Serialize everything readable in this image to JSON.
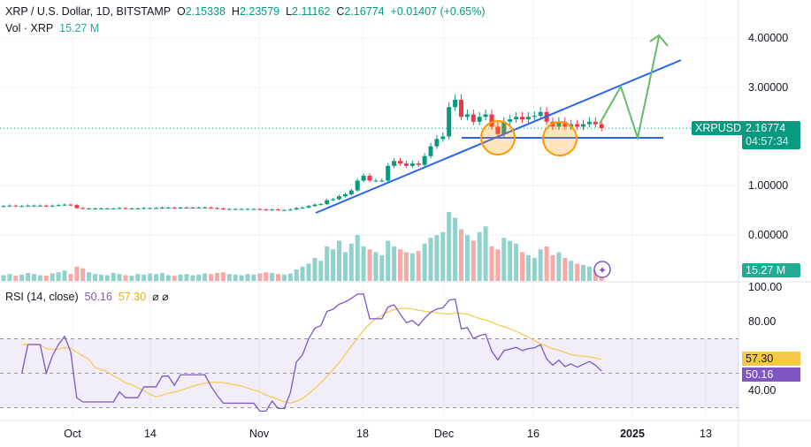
{
  "header": {
    "symbol": "XRP / U.S. Dollar, 1D, BITSTAMP",
    "o_label": "O",
    "open": "2.15338",
    "h_label": "H",
    "high": "2.23579",
    "l_label": "L",
    "low": "2.11162",
    "c_label": "C",
    "close": "2.16774",
    "change": "+0.01407 (+0.65%)",
    "vol_label": "Vol · XRP",
    "vol": "15.27 M"
  },
  "price_tag": {
    "symbol": "XRPUSD",
    "price": "2.16774",
    "countdown": "04:57:34"
  },
  "vol_tag": "15.27 M",
  "price_axis": [
    "4.00000",
    "3.00000",
    "1.00000",
    "0.00000"
  ],
  "rsi": {
    "label": "RSI (14, close)",
    "value": "50.16",
    "ma": "57.30",
    "icons": "⌀ ⌀",
    "axis": [
      "100.00",
      "80.00",
      "40.00"
    ]
  },
  "x_axis": [
    "Oct",
    "14",
    "Nov",
    "18",
    "Dec",
    "16",
    "2025",
    "13"
  ],
  "colors": {
    "up": "#089981",
    "down": "#f23645",
    "rsi": "#7e57c2",
    "rsi_ma": "#f7c948",
    "trend": "#2962ff",
    "circle": "#ff9800",
    "arrow": "#4caf50"
  },
  "chart_data": {
    "type": "candlestick",
    "start": "Sep 19",
    "closes": [
      0.58,
      0.59,
      0.58,
      0.58,
      0.59,
      0.59,
      0.59,
      0.58,
      0.59,
      0.6,
      0.61,
      0.6,
      0.54,
      0.53,
      0.53,
      0.53,
      0.53,
      0.53,
      0.53,
      0.54,
      0.53,
      0.53,
      0.53,
      0.54,
      0.54,
      0.54,
      0.55,
      0.55,
      0.54,
      0.55,
      0.55,
      0.55,
      0.55,
      0.55,
      0.54,
      0.53,
      0.52,
      0.52,
      0.52,
      0.52,
      0.52,
      0.52,
      0.51,
      0.5,
      0.51,
      0.5,
      0.5,
      0.51,
      0.54,
      0.55,
      0.58,
      0.61,
      0.62,
      0.7,
      0.72,
      0.78,
      0.82,
      0.9,
      1.1,
      1.2,
      1.1,
      1.1,
      1.1,
      1.4,
      1.5,
      1.45,
      1.4,
      1.45,
      1.42,
      1.6,
      1.8,
      1.95,
      2.0,
      2.6,
      2.75,
      2.4,
      2.45,
      2.3,
      2.4,
      2.45,
      2.2,
      2.05,
      2.3,
      2.35,
      2.4,
      2.35,
      2.4,
      2.42,
      2.5,
      2.3,
      2.2,
      2.3,
      2.2,
      2.25,
      2.2,
      2.25,
      2.3,
      2.25,
      2.17
    ],
    "volumes": [
      10,
      12,
      9,
      11,
      14,
      12,
      10,
      9,
      13,
      15,
      18,
      12,
      25,
      22,
      15,
      12,
      11,
      10,
      14,
      12,
      10,
      9,
      12,
      11,
      13,
      12,
      14,
      10,
      9,
      11,
      12,
      10,
      11,
      13,
      12,
      14,
      15,
      12,
      11,
      10,
      12,
      11,
      13,
      15,
      14,
      12,
      11,
      13,
      20,
      25,
      30,
      40,
      35,
      60,
      55,
      70,
      50,
      65,
      80,
      60,
      55,
      50,
      45,
      70,
      60,
      55,
      50,
      48,
      52,
      65,
      75,
      80,
      85,
      120,
      110,
      90,
      80,
      70,
      85,
      95,
      60,
      55,
      75,
      70,
      65,
      50,
      45,
      40,
      55,
      60,
      45,
      50,
      40,
      35,
      30,
      28,
      25,
      20,
      15
    ]
  }
}
